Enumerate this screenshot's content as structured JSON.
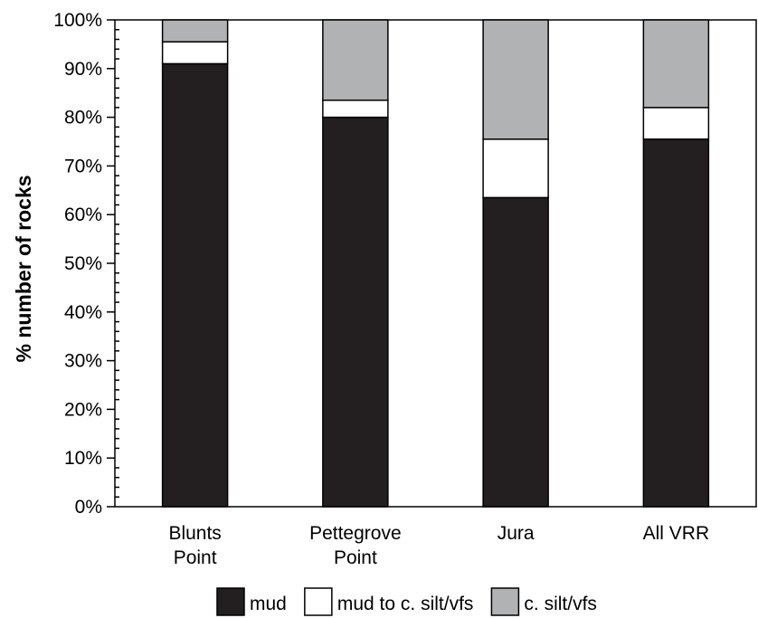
{
  "chart_data": {
    "type": "bar",
    "stacked": true,
    "ylabel": "% number of rocks",
    "ylim": [
      0,
      100
    ],
    "yticks": [
      "0%",
      "10%",
      "20%",
      "30%",
      "40%",
      "50%",
      "60%",
      "70%",
      "80%",
      "90%",
      "100%"
    ],
    "categories": [
      [
        "Blunts",
        "Point"
      ],
      [
        "Pettegrove",
        "Point"
      ],
      [
        "Jura"
      ],
      [
        "All VRR"
      ]
    ],
    "series": [
      {
        "name": "mud",
        "color": "#231f20",
        "values": [
          91,
          80,
          63.5,
          75.5
        ]
      },
      {
        "name": "mud to c. silt/vfs",
        "color": "#ffffff",
        "values": [
          4.5,
          3.5,
          12,
          6.5
        ]
      },
      {
        "name": "c. silt/vfs",
        "color": "#b1b2b4",
        "values": [
          4.5,
          16.5,
          24.5,
          18
        ]
      }
    ],
    "legend_position": "bottom"
  }
}
